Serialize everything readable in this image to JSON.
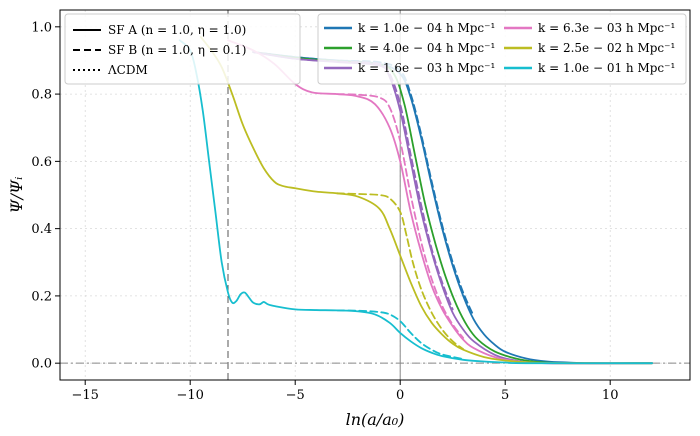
{
  "chart_data": {
    "type": "line",
    "title": "",
    "xlabel": "ln(a/a₀)",
    "ylabel": "Ψ/Ψᵢ",
    "xlim": [
      -16.2,
      13.8
    ],
    "ylim": [
      -0.05,
      1.05
    ],
    "xticks": [
      -15,
      -10,
      -5,
      0,
      5,
      10
    ],
    "xtick_labels": [
      "−15",
      "−10",
      "−5",
      "0",
      "5",
      "10"
    ],
    "yticks": [
      0.0,
      0.2,
      0.4,
      0.6,
      0.8,
      1.0
    ],
    "ytick_labels": [
      "0.0",
      "0.2",
      "0.4",
      "0.6",
      "0.8",
      "1.0"
    ],
    "grid": true,
    "vlines": [
      {
        "x": -8.2,
        "style": "dashed",
        "color": "#555555"
      },
      {
        "x": 0,
        "style": "solid",
        "color": "#888888"
      }
    ],
    "hlines": [
      {
        "y": 0,
        "style": "dashdot",
        "color": "#888888"
      }
    ],
    "style_legend": {
      "position": "top-left",
      "entries": [
        {
          "style": "solid",
          "label": "SF A (n = 1.0, η = 1.0)"
        },
        {
          "style": "dashed",
          "label": "SF B (n = 1.0, η = 0.1)"
        },
        {
          "style": "dotted",
          "label": "ΛCDM"
        }
      ]
    },
    "mode_legend": {
      "position": "top-right",
      "entries": [
        {
          "label": "k = 1.0e − 04 h Mpc⁻¹",
          "color": "#1f77b4"
        },
        {
          "label": "k = 4.0e − 04 h Mpc⁻¹",
          "color": "#2ca02c"
        },
        {
          "label": "k = 1.6e − 03 h Mpc⁻¹",
          "color": "#9467bd"
        },
        {
          "label": "k = 6.3e − 03 h Mpc⁻¹",
          "color": "#e377c2"
        },
        {
          "label": "k = 2.5e − 02 h Mpc⁻¹",
          "color": "#bcbd22"
        },
        {
          "label": "k = 1.0e − 01 h Mpc⁻¹",
          "color": "#17becf"
        }
      ]
    },
    "series": [
      {
        "name": "k=1.0e-04 SF A",
        "color": "#1f77b4",
        "style": "solid",
        "points": [
          [
            -7,
            0.925
          ],
          [
            -5,
            0.91
          ],
          [
            -3,
            0.9
          ],
          [
            -1,
            0.89
          ],
          [
            0,
            0.86
          ],
          [
            0.5,
            0.79
          ],
          [
            1,
            0.67
          ],
          [
            1.5,
            0.53
          ],
          [
            2,
            0.4
          ],
          [
            2.5,
            0.29
          ],
          [
            3,
            0.2
          ],
          [
            3.5,
            0.13
          ],
          [
            4,
            0.085
          ],
          [
            4.5,
            0.055
          ],
          [
            5,
            0.034
          ],
          [
            6,
            0.014
          ],
          [
            7,
            0.005
          ],
          [
            8,
            0.002
          ],
          [
            9,
            0.0
          ],
          [
            12,
            0.0
          ]
        ]
      },
      {
        "name": "k=1.0e-04 SF B",
        "color": "#1f77b4",
        "style": "dashed",
        "points": [
          [
            -7,
            0.925
          ],
          [
            -5,
            0.91
          ],
          [
            -3,
            0.9
          ],
          [
            -1,
            0.895
          ],
          [
            0,
            0.87
          ],
          [
            0.5,
            0.8
          ],
          [
            1,
            0.68
          ],
          [
            1.5,
            0.54
          ],
          [
            2,
            0.41
          ],
          [
            2.5,
            0.3
          ],
          [
            3,
            0.21
          ],
          [
            3.5,
            0.14
          ]
        ]
      },
      {
        "name": "k=4.0e-04 SF A",
        "color": "#2ca02c",
        "style": "solid",
        "points": [
          [
            -7,
            0.925
          ],
          [
            -5,
            0.908
          ],
          [
            -3,
            0.898
          ],
          [
            -1,
            0.888
          ],
          [
            -0.3,
            0.86
          ],
          [
            0.2,
            0.77
          ],
          [
            0.7,
            0.62
          ],
          [
            1.2,
            0.47
          ],
          [
            1.7,
            0.35
          ],
          [
            2.2,
            0.25
          ],
          [
            2.7,
            0.17
          ],
          [
            3.2,
            0.11
          ],
          [
            3.7,
            0.07
          ],
          [
            4.5,
            0.035
          ],
          [
            5.5,
            0.014
          ],
          [
            6.5,
            0.004
          ],
          [
            8,
            0.0
          ],
          [
            12,
            0.0
          ]
        ]
      },
      {
        "name": "k=1.6e-03 SF A",
        "color": "#9467bd",
        "style": "solid",
        "points": [
          [
            -7,
            0.925
          ],
          [
            -5,
            0.905
          ],
          [
            -3,
            0.895
          ],
          [
            -1,
            0.885
          ],
          [
            -0.5,
            0.85
          ],
          [
            0,
            0.75
          ],
          [
            0.5,
            0.6
          ],
          [
            1,
            0.45
          ],
          [
            1.5,
            0.33
          ],
          [
            2,
            0.23
          ],
          [
            2.5,
            0.15
          ],
          [
            3,
            0.1
          ],
          [
            3.5,
            0.065
          ],
          [
            4.5,
            0.025
          ],
          [
            5.5,
            0.008
          ],
          [
            7,
            0.0
          ],
          [
            12,
            0.0
          ]
        ]
      },
      {
        "name": "k=1.6e-03 SF B",
        "color": "#9467bd",
        "style": "dashed",
        "points": [
          [
            -7,
            0.925
          ],
          [
            -5,
            0.905
          ],
          [
            -3,
            0.897
          ],
          [
            -1,
            0.89
          ],
          [
            -0.5,
            0.86
          ],
          [
            0,
            0.77
          ],
          [
            0.5,
            0.62
          ],
          [
            1,
            0.47
          ],
          [
            1.5,
            0.34
          ],
          [
            2,
            0.24
          ],
          [
            2.5,
            0.16
          ]
        ]
      },
      {
        "name": "k=6.3e-03 SF A",
        "color": "#e377c2",
        "style": "solid",
        "points": [
          [
            -8.2,
            0.96
          ],
          [
            -7,
            0.93
          ],
          [
            -6,
            0.89
          ],
          [
            -5,
            0.83
          ],
          [
            -4.2,
            0.805
          ],
          [
            -3,
            0.8
          ],
          [
            -2,
            0.793
          ],
          [
            -1.2,
            0.77
          ],
          [
            -0.5,
            0.7
          ],
          [
            0,
            0.6
          ],
          [
            0.5,
            0.45
          ],
          [
            1,
            0.33
          ],
          [
            1.5,
            0.23
          ],
          [
            2,
            0.16
          ],
          [
            2.5,
            0.11
          ],
          [
            3,
            0.07
          ],
          [
            3.5,
            0.045
          ],
          [
            4.5,
            0.018
          ],
          [
            5.5,
            0.006
          ],
          [
            7,
            0.0
          ],
          [
            12,
            0.0
          ]
        ]
      },
      {
        "name": "k=6.3e-03 SF B",
        "color": "#e377c2",
        "style": "dashed",
        "points": [
          [
            -3,
            0.8
          ],
          [
            -2,
            0.798
          ],
          [
            -1,
            0.79
          ],
          [
            -0.5,
            0.76
          ],
          [
            0,
            0.66
          ],
          [
            0.5,
            0.5
          ],
          [
            1,
            0.36
          ],
          [
            1.5,
            0.25
          ],
          [
            2,
            0.17
          ],
          [
            2.5,
            0.115
          ],
          [
            3,
            0.075
          ]
        ]
      },
      {
        "name": "k=2.5e-02 SF A",
        "color": "#bcbd22",
        "style": "solid",
        "points": [
          [
            -9.5,
            0.97
          ],
          [
            -9,
            0.93
          ],
          [
            -8.5,
            0.88
          ],
          [
            -8,
            0.8
          ],
          [
            -7.5,
            0.71
          ],
          [
            -7,
            0.64
          ],
          [
            -6.5,
            0.58
          ],
          [
            -6,
            0.54
          ],
          [
            -5.6,
            0.527
          ],
          [
            -5,
            0.52
          ],
          [
            -4,
            0.51
          ],
          [
            -3,
            0.505
          ],
          [
            -2,
            0.495
          ],
          [
            -1,
            0.46
          ],
          [
            -0.5,
            0.4
          ],
          [
            0,
            0.32
          ],
          [
            0.5,
            0.24
          ],
          [
            1,
            0.17
          ],
          [
            1.5,
            0.12
          ],
          [
            2,
            0.085
          ],
          [
            2.5,
            0.058
          ],
          [
            3,
            0.04
          ],
          [
            4,
            0.018
          ],
          [
            5,
            0.008
          ],
          [
            6,
            0.003
          ],
          [
            7.5,
            0.0
          ],
          [
            12,
            0.0
          ]
        ]
      },
      {
        "name": "k=2.5e-02 SF B",
        "color": "#bcbd22",
        "style": "dashed",
        "points": [
          [
            -3,
            0.505
          ],
          [
            -2,
            0.503
          ],
          [
            -1,
            0.5
          ],
          [
            -0.5,
            0.49
          ],
          [
            0,
            0.45
          ],
          [
            0.3,
            0.38
          ],
          [
            0.6,
            0.3
          ],
          [
            1,
            0.22
          ],
          [
            1.5,
            0.15
          ],
          [
            2,
            0.1
          ],
          [
            2.5,
            0.065
          ],
          [
            3,
            0.042
          ]
        ]
      },
      {
        "name": "k=1.0e-01 SF A",
        "color": "#17becf",
        "style": "solid",
        "points": [
          [
            -10.5,
            0.96
          ],
          [
            -10,
            0.93
          ],
          [
            -9.7,
            0.86
          ],
          [
            -9.4,
            0.75
          ],
          [
            -9.1,
            0.6
          ],
          [
            -8.8,
            0.45
          ],
          [
            -8.5,
            0.3
          ],
          [
            -8.2,
            0.21
          ],
          [
            -8,
            0.18
          ],
          [
            -7.8,
            0.185
          ],
          [
            -7.6,
            0.205
          ],
          [
            -7.4,
            0.21
          ],
          [
            -7.2,
            0.195
          ],
          [
            -7,
            0.18
          ],
          [
            -6.7,
            0.175
          ],
          [
            -6.5,
            0.182
          ],
          [
            -6.3,
            0.175
          ],
          [
            -6,
            0.17
          ],
          [
            -5,
            0.16
          ],
          [
            -4,
            0.158
          ],
          [
            -3,
            0.157
          ],
          [
            -2,
            0.154
          ],
          [
            -1.2,
            0.145
          ],
          [
            -0.5,
            0.12
          ],
          [
            0,
            0.09
          ],
          [
            0.5,
            0.065
          ],
          [
            1,
            0.045
          ],
          [
            1.5,
            0.031
          ],
          [
            2,
            0.021
          ],
          [
            3,
            0.01
          ],
          [
            4,
            0.005
          ],
          [
            5,
            0.002
          ],
          [
            6,
            0.0
          ],
          [
            12,
            0.0
          ]
        ]
      },
      {
        "name": "k=1.0e-01 SF B",
        "color": "#17becf",
        "style": "dashed",
        "points": [
          [
            -3,
            0.157
          ],
          [
            -2,
            0.156
          ],
          [
            -1,
            0.152
          ],
          [
            -0.5,
            0.145
          ],
          [
            0,
            0.125
          ],
          [
            0.5,
            0.09
          ],
          [
            1,
            0.06
          ],
          [
            1.5,
            0.04
          ],
          [
            2,
            0.026
          ],
          [
            3,
            0.012
          ]
        ]
      }
    ]
  }
}
